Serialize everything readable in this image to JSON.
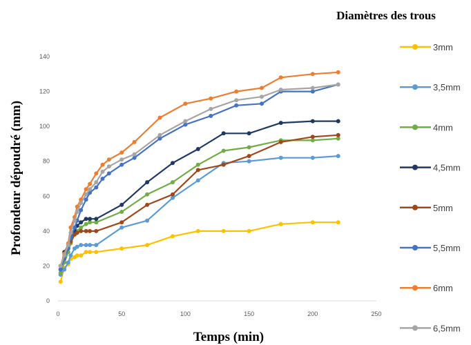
{
  "chart_data": {
    "type": "line",
    "title": "",
    "xlabel": "Temps (min)",
    "ylabel": "Profondeur dépoudré (mm)",
    "xlim": [
      0,
      250
    ],
    "ylim": [
      0,
      140
    ],
    "xticks": [
      0,
      50,
      100,
      150,
      200,
      250
    ],
    "yticks": [
      0,
      20,
      40,
      60,
      80,
      100,
      120,
      140
    ],
    "grid": false,
    "legend": {
      "title": "Diamètres des trous",
      "placement": "right"
    },
    "series": [
      {
        "name": "3mm",
        "color": "#FFC000",
        "points": [
          [
            2,
            11
          ],
          [
            5,
            19
          ],
          [
            8,
            21
          ],
          [
            10,
            24
          ],
          [
            13,
            25
          ],
          [
            15,
            26
          ],
          [
            18,
            26
          ],
          [
            22,
            28
          ],
          [
            25,
            28
          ],
          [
            30,
            28
          ],
          [
            50,
            30
          ],
          [
            70,
            32
          ],
          [
            90,
            37
          ],
          [
            110,
            40
          ],
          [
            130,
            40
          ],
          [
            150,
            40
          ],
          [
            175,
            44
          ],
          [
            200,
            45
          ],
          [
            220,
            45
          ]
        ]
      },
      {
        "name": "3,5mm",
        "color": "#5B9BD5",
        "points": [
          [
            2,
            15
          ],
          [
            5,
            18
          ],
          [
            8,
            22
          ],
          [
            10,
            26
          ],
          [
            13,
            30
          ],
          [
            15,
            31
          ],
          [
            18,
            32
          ],
          [
            22,
            32
          ],
          [
            25,
            32
          ],
          [
            30,
            32
          ],
          [
            50,
            42
          ],
          [
            70,
            46
          ],
          [
            90,
            59
          ],
          [
            110,
            69
          ],
          [
            130,
            79
          ],
          [
            150,
            80
          ],
          [
            175,
            82
          ],
          [
            200,
            82
          ],
          [
            220,
            83
          ]
        ]
      },
      {
        "name": "4mm",
        "color": "#70AD47",
        "points": [
          [
            2,
            16
          ],
          [
            5,
            22
          ],
          [
            8,
            28
          ],
          [
            10,
            33
          ],
          [
            13,
            38
          ],
          [
            15,
            40
          ],
          [
            18,
            42
          ],
          [
            22,
            44
          ],
          [
            25,
            45
          ],
          [
            30,
            45
          ],
          [
            50,
            51
          ],
          [
            70,
            61
          ],
          [
            90,
            68
          ],
          [
            110,
            78
          ],
          [
            130,
            86
          ],
          [
            150,
            88
          ],
          [
            175,
            92
          ],
          [
            200,
            92
          ],
          [
            220,
            93
          ]
        ]
      },
      {
        "name": "4,5mm",
        "color": "#203864",
        "points": [
          [
            2,
            18
          ],
          [
            5,
            28
          ],
          [
            8,
            32
          ],
          [
            10,
            36
          ],
          [
            13,
            40
          ],
          [
            15,
            43
          ],
          [
            18,
            45
          ],
          [
            22,
            47
          ],
          [
            25,
            47
          ],
          [
            30,
            47
          ],
          [
            50,
            55
          ],
          [
            70,
            68
          ],
          [
            90,
            79
          ],
          [
            110,
            87
          ],
          [
            130,
            96
          ],
          [
            150,
            96
          ],
          [
            175,
            102
          ],
          [
            200,
            103
          ],
          [
            220,
            103
          ]
        ]
      },
      {
        "name": "5mm",
        "color": "#A0471A",
        "points": [
          [
            2,
            20
          ],
          [
            5,
            25
          ],
          [
            8,
            30
          ],
          [
            10,
            34
          ],
          [
            13,
            38
          ],
          [
            15,
            39
          ],
          [
            18,
            40
          ],
          [
            22,
            40
          ],
          [
            25,
            40
          ],
          [
            30,
            40
          ],
          [
            50,
            45
          ],
          [
            70,
            55
          ],
          [
            90,
            61
          ],
          [
            110,
            75
          ],
          [
            130,
            78
          ],
          [
            150,
            83
          ],
          [
            175,
            91
          ],
          [
            200,
            94
          ],
          [
            220,
            95
          ]
        ]
      },
      {
        "name": "5,5mm",
        "color": "#4472C4",
        "points": [
          [
            2,
            18
          ],
          [
            5,
            24
          ],
          [
            8,
            30
          ],
          [
            10,
            36
          ],
          [
            13,
            42
          ],
          [
            15,
            46
          ],
          [
            18,
            52
          ],
          [
            22,
            58
          ],
          [
            25,
            62
          ],
          [
            30,
            65
          ],
          [
            35,
            70
          ],
          [
            40,
            73
          ],
          [
            50,
            78
          ],
          [
            60,
            82
          ],
          [
            80,
            93
          ],
          [
            100,
            101
          ],
          [
            120,
            106
          ],
          [
            140,
            112
          ],
          [
            160,
            113
          ],
          [
            175,
            120
          ],
          [
            200,
            120
          ],
          [
            220,
            124
          ]
        ]
      },
      {
        "name": "6mm",
        "color": "#ED7D31",
        "points": [
          [
            2,
            20
          ],
          [
            5,
            27
          ],
          [
            8,
            33
          ],
          [
            10,
            42
          ],
          [
            13,
            48
          ],
          [
            15,
            54
          ],
          [
            18,
            58
          ],
          [
            22,
            64
          ],
          [
            25,
            67
          ],
          [
            30,
            73
          ],
          [
            35,
            78
          ],
          [
            40,
            81
          ],
          [
            50,
            85
          ],
          [
            60,
            91
          ],
          [
            80,
            105
          ],
          [
            100,
            113
          ],
          [
            120,
            116
          ],
          [
            140,
            120
          ],
          [
            160,
            122
          ],
          [
            175,
            128
          ],
          [
            200,
            130
          ],
          [
            220,
            131
          ]
        ]
      },
      {
        "name": "6,5mm",
        "color": "#A5A5A5",
        "points": [
          [
            2,
            20
          ],
          [
            5,
            26
          ],
          [
            8,
            32
          ],
          [
            10,
            39
          ],
          [
            13,
            46
          ],
          [
            15,
            51
          ],
          [
            18,
            56
          ],
          [
            22,
            61
          ],
          [
            25,
            64
          ],
          [
            30,
            68
          ],
          [
            35,
            74
          ],
          [
            40,
            77
          ],
          [
            50,
            81
          ],
          [
            60,
            84
          ],
          [
            80,
            95
          ],
          [
            100,
            103
          ],
          [
            120,
            110
          ],
          [
            140,
            115
          ],
          [
            160,
            117
          ],
          [
            175,
            121
          ],
          [
            200,
            122
          ],
          [
            220,
            124
          ]
        ]
      }
    ]
  }
}
